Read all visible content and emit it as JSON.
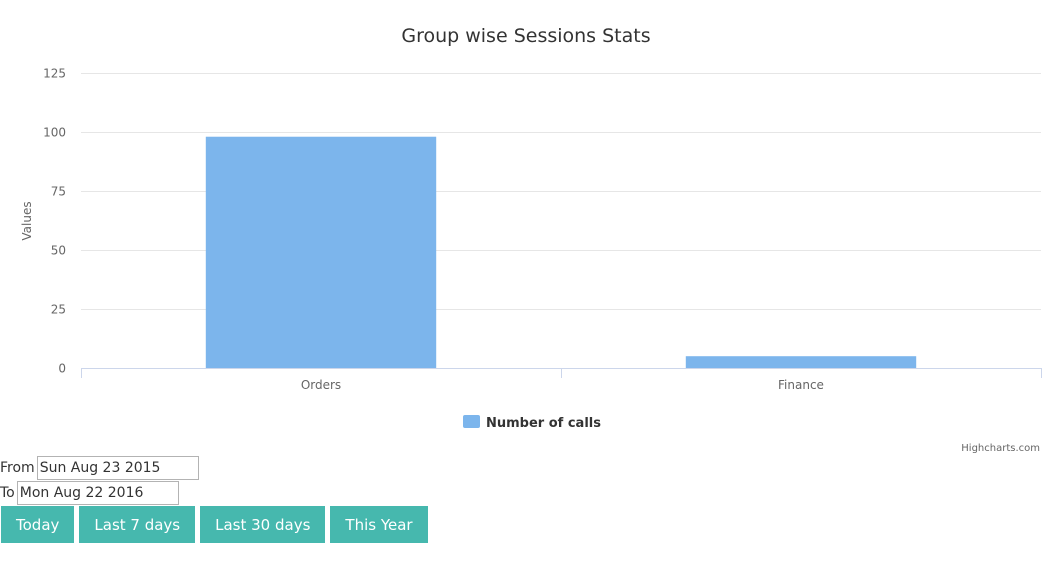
{
  "chart_data": {
    "type": "bar",
    "title": "Group wise Sessions Stats",
    "ylabel": "Values",
    "xlabel": "",
    "categories": [
      "Orders",
      "Finance"
    ],
    "series": [
      {
        "name": "Number of calls",
        "values": [
          98,
          5
        ],
        "color": "#7cb5ec"
      }
    ],
    "ylim": [
      0,
      125
    ],
    "yticks": [
      0,
      25,
      50,
      75,
      100,
      125
    ],
    "grid": true,
    "legend_position": "bottom-center",
    "credits": "Highcharts.com"
  },
  "controls": {
    "from_label": "From",
    "from_value": "Sun Aug 23 2015",
    "to_label": "To",
    "to_value": "Mon Aug 22 2016",
    "buttons": [
      "Today",
      "Last 7 days",
      "Last 30 days",
      "This Year"
    ],
    "button_color": "#46b8ae"
  }
}
